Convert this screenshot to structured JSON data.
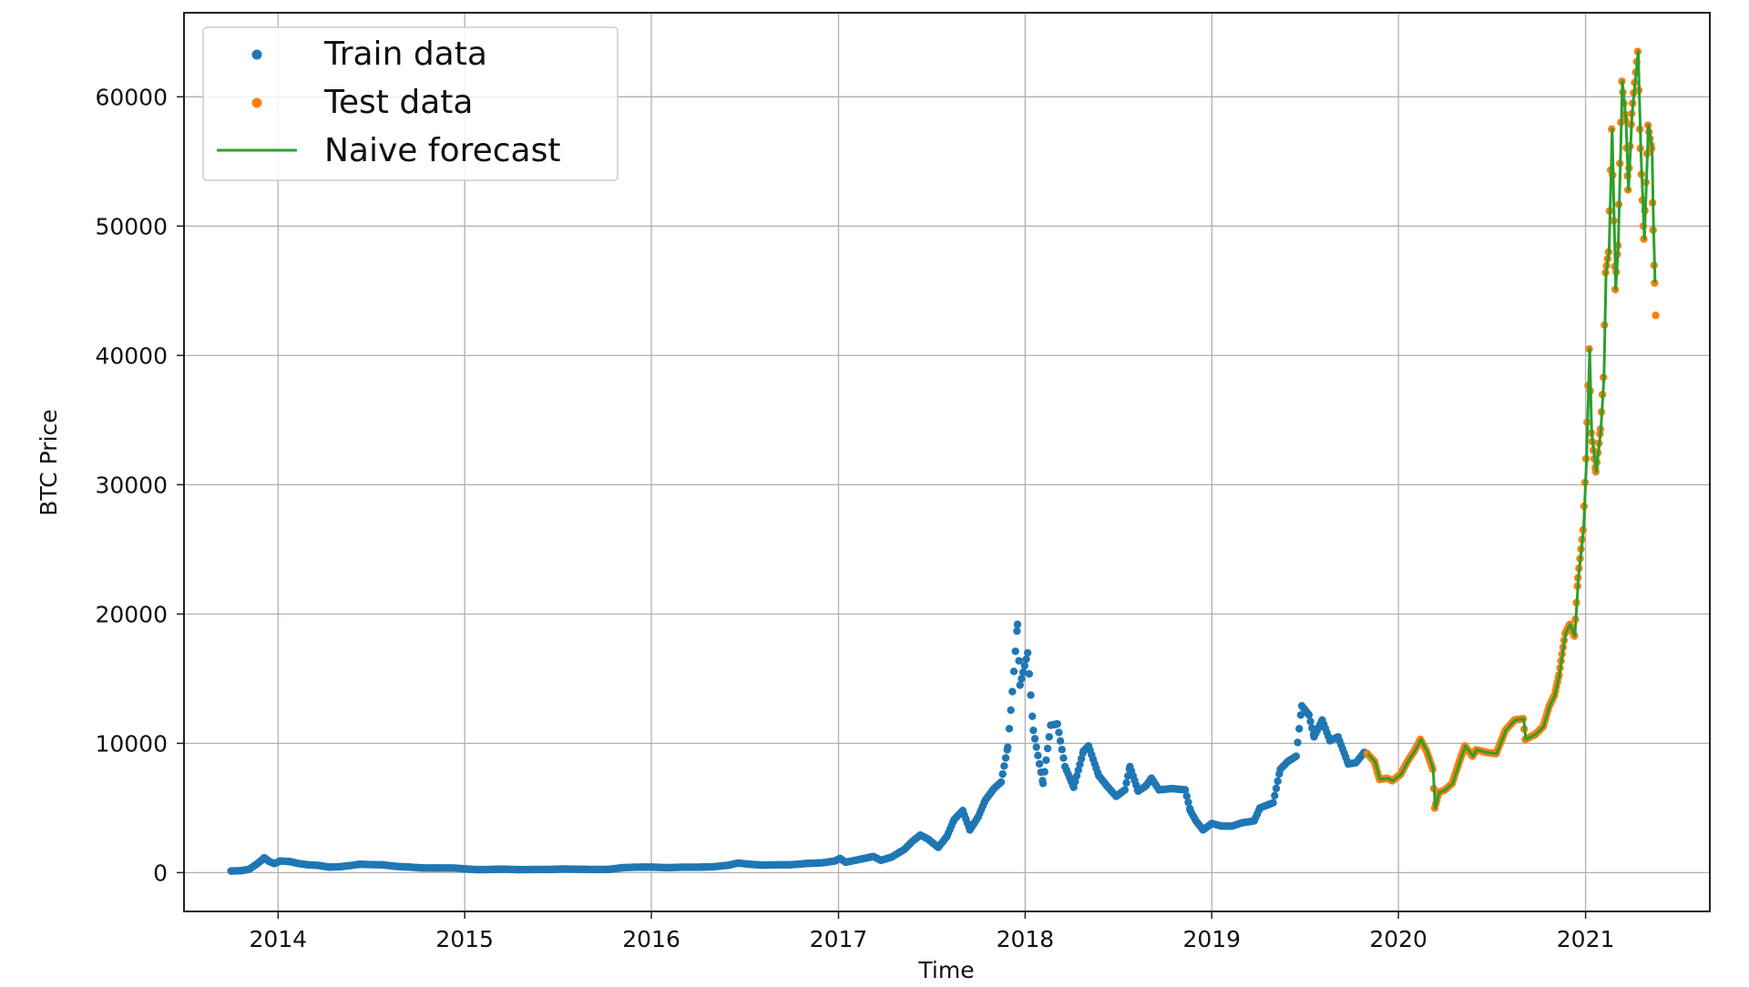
{
  "chart_data": {
    "type": "line",
    "title": "",
    "xlabel": "Time",
    "ylabel": "BTC Price",
    "xlim": [
      "2013-07-01",
      "2021-09-01"
    ],
    "ylim": [
      -3000,
      66500
    ],
    "grid": true,
    "legend": "top-left",
    "x_ticks": [
      {
        "value": "2014-01-01",
        "label": "2014"
      },
      {
        "value": "2015-01-01",
        "label": "2015"
      },
      {
        "value": "2016-01-01",
        "label": "2016"
      },
      {
        "value": "2017-01-01",
        "label": "2017"
      },
      {
        "value": "2018-01-01",
        "label": "2018"
      },
      {
        "value": "2019-01-01",
        "label": "2019"
      },
      {
        "value": "2020-01-01",
        "label": "2020"
      },
      {
        "value": "2021-01-01",
        "label": "2021"
      }
    ],
    "y_ticks": [
      {
        "value": 0,
        "label": "0"
      },
      {
        "value": 10000,
        "label": "10000"
      },
      {
        "value": 20000,
        "label": "20000"
      },
      {
        "value": 30000,
        "label": "30000"
      },
      {
        "value": 40000,
        "label": "40000"
      },
      {
        "value": 50000,
        "label": "50000"
      },
      {
        "value": 60000,
        "label": "60000"
      }
    ],
    "series": [
      {
        "name": "Train data",
        "kind": "scatter",
        "color": "#1f77b4",
        "points": [
          [
            "2013-10-01",
            125
          ],
          [
            "2013-10-20",
            150
          ],
          [
            "2013-11-05",
            250
          ],
          [
            "2013-11-20",
            650
          ],
          [
            "2013-12-01",
            1000
          ],
          [
            "2013-12-05",
            1150
          ],
          [
            "2013-12-15",
            850
          ],
          [
            "2013-12-25",
            700
          ],
          [
            "2014-01-05",
            900
          ],
          [
            "2014-01-25",
            850
          ],
          [
            "2014-02-10",
            700
          ],
          [
            "2014-03-01",
            600
          ],
          [
            "2014-03-20",
            560
          ],
          [
            "2014-04-10",
            430
          ],
          [
            "2014-05-01",
            450
          ],
          [
            "2014-05-25",
            560
          ],
          [
            "2014-06-10",
            650
          ],
          [
            "2014-07-01",
            620
          ],
          [
            "2014-07-25",
            600
          ],
          [
            "2014-08-20",
            480
          ],
          [
            "2014-09-15",
            430
          ],
          [
            "2014-10-10",
            360
          ],
          [
            "2014-11-10",
            360
          ],
          [
            "2014-12-10",
            360
          ],
          [
            "2015-01-05",
            280
          ],
          [
            "2015-01-25",
            230
          ],
          [
            "2015-02-15",
            240
          ],
          [
            "2015-03-15",
            270
          ],
          [
            "2015-04-15",
            230
          ],
          [
            "2015-05-15",
            240
          ],
          [
            "2015-06-15",
            240
          ],
          [
            "2015-07-10",
            280
          ],
          [
            "2015-08-10",
            260
          ],
          [
            "2015-09-10",
            240
          ],
          [
            "2015-10-10",
            250
          ],
          [
            "2015-11-05",
            380
          ],
          [
            "2015-12-01",
            420
          ],
          [
            "2016-01-01",
            430
          ],
          [
            "2016-02-01",
            380
          ],
          [
            "2016-03-01",
            420
          ],
          [
            "2016-04-01",
            420
          ],
          [
            "2016-05-01",
            450
          ],
          [
            "2016-06-01",
            580
          ],
          [
            "2016-06-18",
            740
          ],
          [
            "2016-07-10",
            650
          ],
          [
            "2016-08-05",
            580
          ],
          [
            "2016-09-01",
            600
          ],
          [
            "2016-10-01",
            610
          ],
          [
            "2016-11-01",
            710
          ],
          [
            "2016-12-01",
            760
          ],
          [
            "2016-12-25",
            900
          ],
          [
            "2017-01-04",
            1100
          ],
          [
            "2017-01-15",
            800
          ],
          [
            "2017-02-15",
            1050
          ],
          [
            "2017-03-10",
            1250
          ],
          [
            "2017-03-25",
            950
          ],
          [
            "2017-04-15",
            1200
          ],
          [
            "2017-05-10",
            1800
          ],
          [
            "2017-05-25",
            2400
          ],
          [
            "2017-06-10",
            2900
          ],
          [
            "2017-06-25",
            2600
          ],
          [
            "2017-07-15",
            1950
          ],
          [
            "2017-08-01",
            2800
          ],
          [
            "2017-08-15",
            4100
          ],
          [
            "2017-09-01",
            4800
          ],
          [
            "2017-09-15",
            3300
          ],
          [
            "2017-10-01",
            4300
          ],
          [
            "2017-10-15",
            5600
          ],
          [
            "2017-11-01",
            6500
          ],
          [
            "2017-11-15",
            7000
          ],
          [
            "2017-11-28",
            9700
          ],
          [
            "2017-12-07",
            14000
          ],
          [
            "2017-12-17",
            19200
          ],
          [
            "2017-12-22",
            14500
          ],
          [
            "2018-01-06",
            17000
          ],
          [
            "2018-01-17",
            11000
          ],
          [
            "2018-02-05",
            6900
          ],
          [
            "2018-02-20",
            11400
          ],
          [
            "2018-03-05",
            11500
          ],
          [
            "2018-03-20",
            8200
          ],
          [
            "2018-04-06",
            6600
          ],
          [
            "2018-04-25",
            9400
          ],
          [
            "2018-05-05",
            9800
          ],
          [
            "2018-05-25",
            7500
          ],
          [
            "2018-06-10",
            6700
          ],
          [
            "2018-06-28",
            5900
          ],
          [
            "2018-07-15",
            6400
          ],
          [
            "2018-07-25",
            8200
          ],
          [
            "2018-08-10",
            6300
          ],
          [
            "2018-08-25",
            6700
          ],
          [
            "2018-09-05",
            7300
          ],
          [
            "2018-09-20",
            6400
          ],
          [
            "2018-10-15",
            6500
          ],
          [
            "2018-11-10",
            6400
          ],
          [
            "2018-11-20",
            4800
          ],
          [
            "2018-12-01",
            4000
          ],
          [
            "2018-12-15",
            3300
          ],
          [
            "2019-01-01",
            3800
          ],
          [
            "2019-01-20",
            3600
          ],
          [
            "2019-02-10",
            3600
          ],
          [
            "2019-03-01",
            3850
          ],
          [
            "2019-03-25",
            4000
          ],
          [
            "2019-04-05",
            5000
          ],
          [
            "2019-05-01",
            5400
          ],
          [
            "2019-05-15",
            8000
          ],
          [
            "2019-05-30",
            8600
          ],
          [
            "2019-06-15",
            9000
          ],
          [
            "2019-06-26",
            12900
          ],
          [
            "2019-07-10",
            12200
          ],
          [
            "2019-07-20",
            10500
          ],
          [
            "2019-08-05",
            11800
          ],
          [
            "2019-08-20",
            10200
          ],
          [
            "2019-09-05",
            10500
          ],
          [
            "2019-09-25",
            8400
          ],
          [
            "2019-10-10",
            8500
          ],
          [
            "2019-10-26",
            9300
          ],
          [
            "2019-11-01",
            9200
          ]
        ]
      },
      {
        "name": "Test data",
        "kind": "scatter",
        "color": "#ff7f0e",
        "points": [
          [
            "2019-11-01",
            9200
          ],
          [
            "2019-11-15",
            8600
          ],
          [
            "2019-11-25",
            7200
          ],
          [
            "2019-12-10",
            7300
          ],
          [
            "2019-12-20",
            7100
          ],
          [
            "2020-01-05",
            7600
          ],
          [
            "2020-01-20",
            8700
          ],
          [
            "2020-02-01",
            9400
          ],
          [
            "2020-02-13",
            10300
          ],
          [
            "2020-02-25",
            9400
          ],
          [
            "2020-03-08",
            8000
          ],
          [
            "2020-03-12",
            5000
          ],
          [
            "2020-03-20",
            6200
          ],
          [
            "2020-04-01",
            6400
          ],
          [
            "2020-04-15",
            6900
          ],
          [
            "2020-04-30",
            8700
          ],
          [
            "2020-05-10",
            9800
          ],
          [
            "2020-05-25",
            9000
          ],
          [
            "2020-06-01",
            9500
          ],
          [
            "2020-06-20",
            9300
          ],
          [
            "2020-07-10",
            9200
          ],
          [
            "2020-07-28",
            11000
          ],
          [
            "2020-08-15",
            11800
          ],
          [
            "2020-09-01",
            11900
          ],
          [
            "2020-09-05",
            10300
          ],
          [
            "2020-09-25",
            10700
          ],
          [
            "2020-10-10",
            11300
          ],
          [
            "2020-10-22",
            12900
          ],
          [
            "2020-11-01",
            13700
          ],
          [
            "2020-11-10",
            15300
          ],
          [
            "2020-11-22",
            18500
          ],
          [
            "2020-12-01",
            19200
          ],
          [
            "2020-12-10",
            18300
          ],
          [
            "2020-12-17",
            22800
          ],
          [
            "2020-12-27",
            26500
          ],
          [
            "2021-01-02",
            32000
          ],
          [
            "2021-01-08",
            40500
          ],
          [
            "2021-01-12",
            34000
          ],
          [
            "2021-01-21",
            31000
          ],
          [
            "2021-01-30",
            34300
          ],
          [
            "2021-02-05",
            38300
          ],
          [
            "2021-02-09",
            46400
          ],
          [
            "2021-02-15",
            48000
          ],
          [
            "2021-02-21",
            57500
          ],
          [
            "2021-02-28",
            45100
          ],
          [
            "2021-03-05",
            48500
          ],
          [
            "2021-03-13",
            61200
          ],
          [
            "2021-03-20",
            58200
          ],
          [
            "2021-03-25",
            52800
          ],
          [
            "2021-04-01",
            58700
          ],
          [
            "2021-04-13",
            63500
          ],
          [
            "2021-04-18",
            56000
          ],
          [
            "2021-04-25",
            49000
          ],
          [
            "2021-05-03",
            57800
          ],
          [
            "2021-05-10",
            56000
          ],
          [
            "2021-05-13",
            49700
          ],
          [
            "2021-05-16",
            45600
          ],
          [
            "2021-05-18",
            43100
          ]
        ]
      },
      {
        "name": "Naive forecast",
        "kind": "line",
        "color": "#2ca02c",
        "shift_days": 1
      }
    ]
  }
}
